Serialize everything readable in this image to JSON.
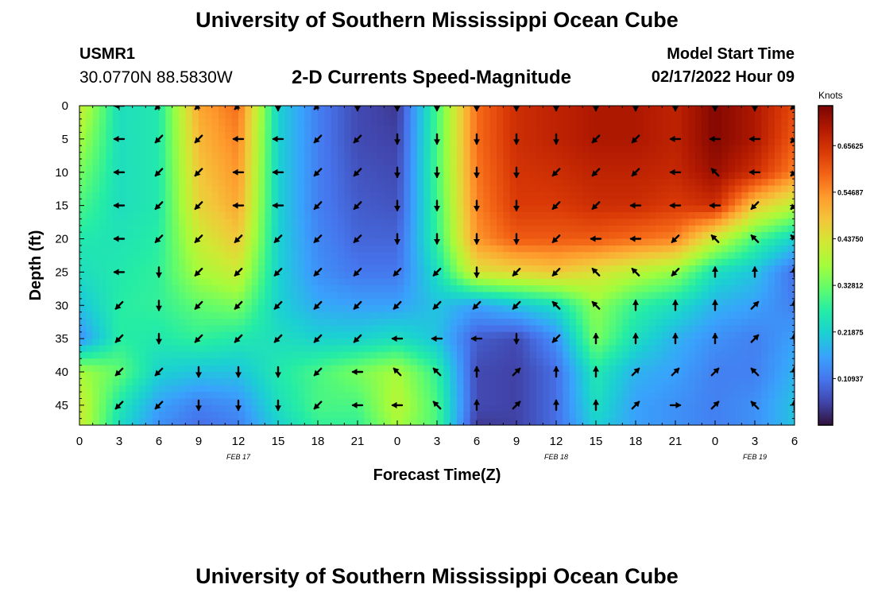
{
  "header": {
    "title": "University of Southern Mississippi Ocean Cube",
    "station_id": "USMR1",
    "coordinates": "30.0770N  88.5830W",
    "subtitle": "2-D Currents Speed-Magnitude",
    "model_start_label": "Model Start Time",
    "model_start_value": "02/17/2022 Hour 09"
  },
  "footer": {
    "title": "University of Southern Mississippi Ocean Cube"
  },
  "chart_data": {
    "type": "heatmap",
    "title": "2-D Currents Speed-Magnitude",
    "xlabel": "Forecast Time(Z)",
    "ylabel": "Depth (ft)",
    "xlim": [
      0,
      54
    ],
    "ylim": [
      0,
      48
    ],
    "x_ticks": [
      0,
      3,
      6,
      9,
      12,
      15,
      18,
      21,
      24,
      27,
      30,
      33,
      36,
      39,
      42,
      45,
      48,
      51,
      54
    ],
    "x_tick_labels": [
      "0",
      "3",
      "6",
      "9",
      "12",
      "15",
      "18",
      "21",
      "0",
      "3",
      "6",
      "9",
      "12",
      "15",
      "18",
      "21",
      "0",
      "3",
      "6"
    ],
    "y_ticks": [
      0,
      5,
      10,
      15,
      20,
      25,
      30,
      35,
      40,
      45
    ],
    "y_tick_labels": [
      "0",
      "5",
      "10",
      "15",
      "20",
      "25",
      "30",
      "35",
      "40",
      "45"
    ],
    "date_labels": [
      {
        "x": 12,
        "label": "FEB 17"
      },
      {
        "x": 36,
        "label": "FEB 18"
      },
      {
        "x": 51,
        "label": "FEB 19"
      }
    ],
    "colorbar": {
      "label": "Knots",
      "min": 0,
      "max": 0.75,
      "ticks": [
        0.10937,
        0.21875,
        0.32812,
        0.4375,
        0.54687,
        0.65625
      ],
      "tick_labels": [
        "0.10937",
        "0.21875",
        "0.32812",
        "0.43750",
        "0.54687",
        "0.65625"
      ]
    },
    "x": [
      0,
      3,
      6,
      9,
      12,
      15,
      18,
      21,
      24,
      27,
      30,
      33,
      36,
      39,
      42,
      45,
      48,
      51,
      54
    ],
    "depths": [
      0,
      5,
      10,
      15,
      20,
      25,
      30,
      35,
      40,
      45,
      48
    ],
    "speed": [
      [
        0.42,
        0.24,
        0.26,
        0.52,
        0.58,
        0.22,
        0.12,
        0.06,
        0.04,
        0.3,
        0.58,
        0.66,
        0.68,
        0.7,
        0.7,
        0.68,
        0.74,
        0.7,
        0.62
      ],
      [
        0.38,
        0.24,
        0.26,
        0.5,
        0.56,
        0.22,
        0.12,
        0.06,
        0.05,
        0.3,
        0.58,
        0.66,
        0.68,
        0.7,
        0.7,
        0.68,
        0.74,
        0.7,
        0.6
      ],
      [
        0.34,
        0.24,
        0.26,
        0.48,
        0.54,
        0.22,
        0.12,
        0.07,
        0.06,
        0.3,
        0.57,
        0.65,
        0.66,
        0.68,
        0.68,
        0.67,
        0.72,
        0.66,
        0.56
      ],
      [
        0.3,
        0.24,
        0.26,
        0.46,
        0.52,
        0.22,
        0.12,
        0.08,
        0.07,
        0.29,
        0.56,
        0.64,
        0.64,
        0.66,
        0.66,
        0.64,
        0.66,
        0.48,
        0.4
      ],
      [
        0.26,
        0.25,
        0.27,
        0.42,
        0.48,
        0.22,
        0.13,
        0.09,
        0.09,
        0.28,
        0.54,
        0.6,
        0.6,
        0.6,
        0.58,
        0.56,
        0.42,
        0.3,
        0.22
      ],
      [
        0.24,
        0.26,
        0.28,
        0.38,
        0.42,
        0.22,
        0.14,
        0.11,
        0.11,
        0.24,
        0.44,
        0.46,
        0.48,
        0.44,
        0.4,
        0.36,
        0.24,
        0.2,
        0.1
      ],
      [
        0.2,
        0.27,
        0.28,
        0.32,
        0.34,
        0.22,
        0.17,
        0.16,
        0.16,
        0.2,
        0.16,
        0.2,
        0.24,
        0.36,
        0.28,
        0.24,
        0.18,
        0.16,
        0.12
      ],
      [
        0.14,
        0.27,
        0.26,
        0.28,
        0.26,
        0.24,
        0.22,
        0.22,
        0.24,
        0.2,
        0.08,
        0.06,
        0.14,
        0.34,
        0.24,
        0.18,
        0.14,
        0.12,
        0.16
      ],
      [
        0.38,
        0.32,
        0.22,
        0.2,
        0.2,
        0.26,
        0.3,
        0.34,
        0.38,
        0.28,
        0.06,
        0.05,
        0.1,
        0.26,
        0.18,
        0.16,
        0.12,
        0.12,
        0.18
      ],
      [
        0.42,
        0.26,
        0.16,
        0.12,
        0.14,
        0.24,
        0.3,
        0.3,
        0.4,
        0.3,
        0.06,
        0.05,
        0.1,
        0.24,
        0.16,
        0.14,
        0.12,
        0.14,
        0.2
      ],
      [
        0.42,
        0.24,
        0.14,
        0.1,
        0.12,
        0.22,
        0.28,
        0.28,
        0.38,
        0.3,
        0.04,
        0.05,
        0.1,
        0.22,
        0.16,
        0.14,
        0.12,
        0.14,
        0.2
      ]
    ],
    "vector_x": [
      3,
      6,
      9,
      12,
      15,
      18,
      21,
      24,
      27,
      30,
      33,
      36,
      39,
      42,
      45,
      48,
      51,
      54
    ],
    "vector_depths": [
      0,
      5,
      10,
      15,
      20,
      25,
      30,
      35,
      40,
      45
    ],
    "vector_direction_deg": [
      [
        270,
        225,
        225,
        225,
        180,
        225,
        180,
        180,
        180,
        180,
        180,
        180,
        180,
        180,
        180,
        180,
        180,
        225
      ],
      [
        270,
        225,
        225,
        270,
        270,
        225,
        225,
        180,
        180,
        180,
        180,
        180,
        225,
        225,
        270,
        270,
        270,
        225
      ],
      [
        270,
        225,
        225,
        270,
        270,
        225,
        225,
        180,
        180,
        180,
        180,
        225,
        225,
        225,
        270,
        315,
        270,
        225
      ],
      [
        270,
        225,
        225,
        270,
        270,
        225,
        225,
        180,
        180,
        180,
        180,
        225,
        225,
        270,
        270,
        270,
        225,
        225
      ],
      [
        270,
        225,
        225,
        225,
        225,
        225,
        225,
        180,
        180,
        180,
        180,
        225,
        270,
        270,
        225,
        315,
        315,
        315
      ],
      [
        270,
        180,
        225,
        225,
        225,
        225,
        225,
        225,
        225,
        180,
        225,
        225,
        315,
        315,
        225,
        0,
        0,
        0
      ],
      [
        225,
        180,
        225,
        225,
        225,
        225,
        225,
        225,
        225,
        225,
        225,
        315,
        315,
        0,
        0,
        0,
        45,
        0
      ],
      [
        225,
        180,
        225,
        225,
        225,
        225,
        225,
        270,
        270,
        270,
        180,
        225,
        0,
        0,
        0,
        0,
        45,
        0
      ],
      [
        225,
        225,
        180,
        180,
        180,
        225,
        270,
        315,
        315,
        0,
        45,
        0,
        0,
        45,
        45,
        45,
        315,
        0
      ],
      [
        225,
        225,
        180,
        180,
        180,
        225,
        270,
        270,
        315,
        0,
        45,
        0,
        0,
        45,
        90,
        45,
        315,
        0
      ]
    ]
  },
  "colors": {
    "palette": [
      "#30123b",
      "#4145ab",
      "#4675ed",
      "#39a2fc",
      "#1bcfd4",
      "#24eca6",
      "#61fc6c",
      "#a4fc3b",
      "#d1e834",
      "#f3c63a",
      "#fe9b2d",
      "#f36315",
      "#d93806",
      "#b11901",
      "#7a0402"
    ],
    "vector": "#000000"
  }
}
